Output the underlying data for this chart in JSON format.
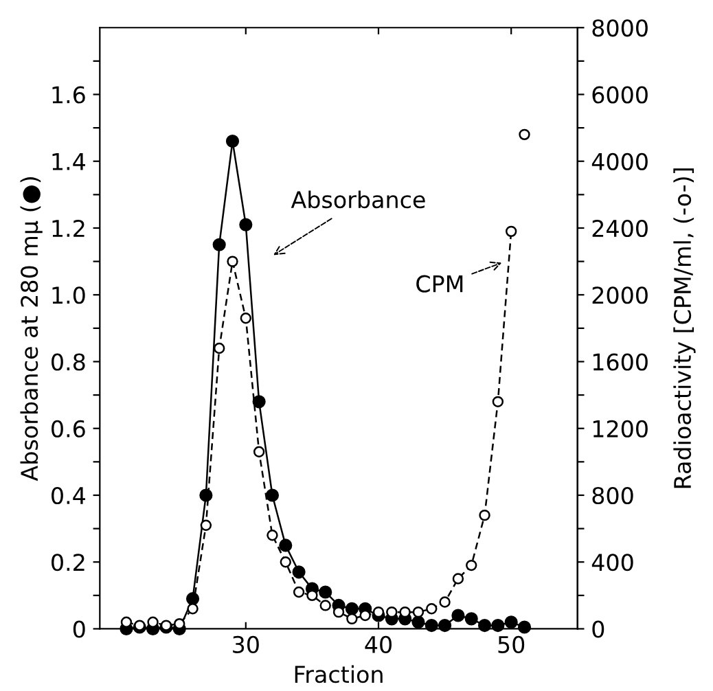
{
  "chart_data": {
    "type": "line",
    "xlabel": "Fraction",
    "ylabel": "Absorbance at 280 mμ (●)",
    "y2label": "Radioactivity [CPM/ml, (-o-)]",
    "x": [
      21,
      22,
      23,
      24,
      25,
      26,
      27,
      28,
      29,
      30,
      31,
      32,
      33,
      34,
      35,
      36,
      37,
      38,
      39,
      40,
      41,
      42,
      43,
      44,
      45,
      46,
      47,
      48,
      49,
      50,
      51
    ],
    "series": [
      {
        "color": "#000000",
        "line_style": "solid",
        "values": [
          0,
          0.005,
          0,
          0.005,
          0,
          0.09,
          0.4,
          1.15,
          1.46,
          1.21,
          0.68,
          0.4,
          0.25,
          0.17,
          0.12,
          0.11,
          0.07,
          0.06,
          0.06,
          0.04,
          0.03,
          0.03,
          0.02,
          0.01,
          0.01,
          0.04,
          0.03,
          0.01,
          0.01,
          0.02,
          0.005
        ]
      },
      {
        "color": "#000000",
        "line_style": "dashed",
        "axis": "y2",
        "x": [
          21,
          22,
          23,
          24,
          25,
          26,
          27,
          28,
          29,
          30,
          31,
          32,
          33,
          34,
          35,
          36,
          37,
          38,
          39,
          40,
          41,
          42,
          43,
          44,
          45,
          46,
          47,
          48,
          49,
          50
        ],
        "values": [
          40,
          20,
          40,
          20,
          30,
          120,
          620,
          1680,
          2200,
          1860,
          1060,
          560,
          400,
          220,
          200,
          140,
          100,
          60,
          80,
          100,
          100,
          100,
          100,
          120,
          160,
          300,
          380,
          680,
          1360,
          2380
        ]
      },
      {
        "color": "#000000",
        "line_style": "dashed",
        "axis": "y3",
        "x": [
          51
        ],
        "values": [
          4800
        ]
      }
    ],
    "marker": "circle",
    "xlim": [
      19,
      55
    ],
    "xticks": [
      30,
      40,
      50
    ],
    "ylim": [
      0,
      1.8
    ],
    "yticks": [
      0,
      {
        "value": 0.1,
        "label": null
      },
      {
        "value": 0.2,
        "label": "0.2"
      },
      {
        "value": 0.3,
        "label": null
      },
      {
        "value": 0.4,
        "label": "0.4"
      },
      {
        "value": 0.5,
        "label": null
      },
      {
        "value": 0.6,
        "label": "0.6"
      },
      {
        "value": 0.7,
        "label": null
      },
      {
        "value": 0.8,
        "label": "0.8"
      },
      {
        "value": 0.9,
        "label": null
      },
      {
        "value": 1.0,
        "label": "1.0"
      },
      {
        "value": 1.1,
        "label": null
      },
      {
        "value": 1.2,
        "label": "1.2"
      },
      {
        "value": 1.3,
        "label": null
      },
      {
        "value": 1.4,
        "label": "1.4"
      },
      {
        "value": 1.5,
        "label": null
      },
      {
        "value": 1.6,
        "label": "1.6"
      },
      {
        "value": 1.7,
        "label": null
      }
    ],
    "y2lim": [
      0,
      2600
    ],
    "y2ticks": [
      0,
      {
        "value": 200,
        "label": null
      },
      400,
      {
        "value": 600,
        "label": null
      },
      800,
      {
        "value": 1000,
        "label": null
      },
      1200,
      {
        "value": 1400,
        "label": null
      },
      1600,
      {
        "value": 1800,
        "label": null
      },
      2000,
      {
        "value": 2200,
        "label": null
      },
      2400
    ],
    "y3lim": [
      3000,
      8000
    ],
    "y3ticks": [
      {
        "value": 3000,
        "label": null
      },
      4000,
      {
        "value": 5000,
        "label": null
      },
      6000,
      {
        "value": 7000,
        "label": null
      },
      8000
    ],
    "annotations": [
      "Absorbance",
      "CPM"
    ],
    "grid": false,
    "legend": false
  }
}
